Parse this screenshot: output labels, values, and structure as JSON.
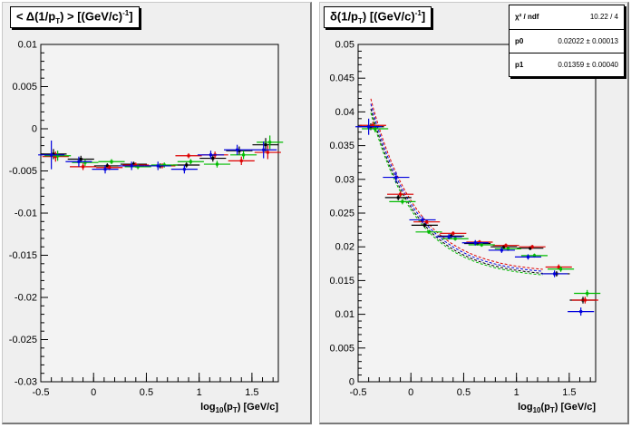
{
  "chart_data": [
    {
      "type": "scatter",
      "title": "< Δ(1/p_T) >  [(GeV/c)^-1]",
      "title_parts": {
        "pre": "< Δ(1/p",
        "sub": "T",
        "post": ") >  [(GeV/c)",
        "sup": "-1",
        "end": "]"
      },
      "xlabel": "log_10(p_T)  [GeV/c]",
      "xlabel_parts": {
        "pre": "log",
        "sub1": "10",
        "mid": "(p",
        "sub2": "T",
        "post": ")  [GeV/c]"
      },
      "xlim": [
        -0.5,
        1.75
      ],
      "ylim": [
        -0.03,
        0.01
      ],
      "x_ticks": [
        -0.5,
        0,
        0.5,
        1,
        1.5
      ],
      "x_tick_labels": [
        "-0.5",
        "0",
        "0.5",
        "1",
        "1.5"
      ],
      "y_ticks": [
        -0.03,
        -0.025,
        -0.02,
        -0.015,
        -0.01,
        -0.005,
        0,
        0.005,
        0.01
      ],
      "y_tick_labels": [
        "-0.03",
        "-0.025",
        "-0.02",
        "-0.015",
        "-0.01",
        "-0.005",
        "0",
        "0.005",
        "0.01"
      ],
      "grid": false,
      "series": [
        {
          "color": "#000000",
          "x": [
            -0.38,
            -0.12,
            0.13,
            0.38,
            0.63,
            0.88,
            1.13,
            1.38,
            1.63
          ],
          "y": [
            -0.003,
            -0.0036,
            -0.0044,
            -0.0042,
            -0.0044,
            -0.0043,
            -0.0035,
            -0.0026,
            -0.0019
          ],
          "yerr": [
            0.0006,
            0.0004,
            0.0003,
            0.0003,
            0.0003,
            0.0003,
            0.0004,
            0.0005,
            0.0008
          ]
        },
        {
          "color": "#dd0000",
          "x": [
            -0.36,
            -0.1,
            0.15,
            0.4,
            0.65,
            0.9,
            1.15,
            1.4,
            1.65
          ],
          "y": [
            -0.0033,
            -0.0045,
            -0.0046,
            -0.0043,
            -0.0044,
            -0.0032,
            -0.0031,
            -0.0038,
            -0.0028
          ],
          "yerr": [
            0.0006,
            0.0004,
            0.0003,
            0.0003,
            0.0003,
            0.0003,
            0.0004,
            0.0005,
            0.0008
          ]
        },
        {
          "color": "#00bb00",
          "x": [
            -0.34,
            -0.08,
            0.17,
            0.42,
            0.67,
            0.92,
            1.17,
            1.42,
            1.67
          ],
          "y": [
            -0.0032,
            -0.004,
            -0.0039,
            -0.0045,
            -0.0043,
            -0.0039,
            -0.0042,
            -0.0031,
            -0.0016
          ],
          "yerr": [
            0.0006,
            0.0004,
            0.0003,
            0.0003,
            0.0003,
            0.0003,
            0.0004,
            0.0005,
            0.0008
          ]
        },
        {
          "color": "#0000dd",
          "x": [
            -0.4,
            -0.14,
            0.11,
            0.36,
            0.61,
            0.86,
            1.11,
            1.36,
            1.61
          ],
          "y": [
            -0.0031,
            -0.0039,
            -0.0048,
            -0.0044,
            -0.0044,
            -0.0048,
            -0.0031,
            -0.0025,
            -0.0025
          ],
          "yerr": [
            0.0017,
            0.0006,
            0.0005,
            0.0005,
            0.0005,
            0.0005,
            0.0005,
            0.0006,
            0.001
          ]
        }
      ]
    },
    {
      "type": "scatter",
      "title": "δ(1/p_T)  [(GeV/c)^-1]",
      "title_parts": {
        "pre": "δ(1/p",
        "sub": "T",
        "post": ")  [(GeV/c)",
        "sup": "-1",
        "end": "]"
      },
      "xlabel": "log_10(p_T)  [GeV/c]",
      "xlabel_parts": {
        "pre": "log",
        "sub1": "10",
        "mid": "(p",
        "sub2": "T",
        "post": ")  [GeV/c]"
      },
      "xlim": [
        -0.5,
        1.75
      ],
      "ylim": [
        0,
        0.05
      ],
      "x_ticks": [
        -0.5,
        0,
        0.5,
        1,
        1.5
      ],
      "x_tick_labels": [
        "-0.5",
        "0",
        "0.5",
        "1",
        "1.5"
      ],
      "y_ticks": [
        0,
        0.005,
        0.01,
        0.015,
        0.02,
        0.025,
        0.03,
        0.035,
        0.04,
        0.045,
        0.05
      ],
      "y_tick_labels": [
        "0",
        "0.005",
        "0.01",
        "0.015",
        "0.02",
        "0.025",
        "0.03",
        "0.035",
        "0.04",
        "0.045",
        "0.05"
      ],
      "grid": false,
      "fit": {
        "p0": 0.02022,
        "p1": 0.01359,
        "x_from": -0.38,
        "x_to": 1.25
      },
      "stats": [
        {
          "name": "χ² / ndf",
          "value": "10.22 / 4"
        },
        {
          "name": "p0",
          "value": "0.02022 ± 0.00013"
        },
        {
          "name": "p1",
          "value": "0.01359 ± 0.00040"
        }
      ],
      "series": [
        {
          "color": "#000000",
          "x": [
            -0.38,
            -0.12,
            0.13,
            0.38,
            0.63,
            0.88,
            1.13,
            1.38,
            1.63
          ],
          "y": [
            0.0378,
            0.0273,
            0.0232,
            0.0216,
            0.0205,
            0.02,
            0.0198,
            0.016,
            0.0121
          ],
          "yerr": [
            0.0005,
            0.0004,
            0.0003,
            0.0003,
            0.0003,
            0.0003,
            0.0003,
            0.0004,
            0.0005
          ]
        },
        {
          "color": "#dd0000",
          "x": [
            -0.36,
            -0.1,
            0.15,
            0.4,
            0.65,
            0.9,
            1.15,
            1.4,
            1.65
          ],
          "y": [
            0.038,
            0.0278,
            0.0237,
            0.022,
            0.0207,
            0.0202,
            0.02,
            0.017,
            0.0121
          ],
          "yerr": [
            0.0005,
            0.0004,
            0.0003,
            0.0003,
            0.0003,
            0.0003,
            0.0003,
            0.0004,
            0.0005
          ]
        },
        {
          "color": "#00bb00",
          "x": [
            -0.34,
            -0.08,
            0.17,
            0.42,
            0.67,
            0.92,
            1.17,
            1.42,
            1.67
          ],
          "y": [
            0.0375,
            0.0267,
            0.0222,
            0.0212,
            0.0203,
            0.0197,
            0.0187,
            0.0167,
            0.0131
          ],
          "yerr": [
            0.0005,
            0.0004,
            0.0003,
            0.0003,
            0.0003,
            0.0003,
            0.0003,
            0.0004,
            0.0005
          ]
        },
        {
          "color": "#0000dd",
          "x": [
            -0.4,
            -0.14,
            0.11,
            0.36,
            0.61,
            0.86,
            1.11,
            1.36,
            1.61
          ],
          "y": [
            0.0378,
            0.0303,
            0.024,
            0.0215,
            0.0206,
            0.0195,
            0.0185,
            0.016,
            0.0104
          ],
          "yerr": [
            0.0012,
            0.0008,
            0.0005,
            0.0004,
            0.0004,
            0.0004,
            0.0004,
            0.0005,
            0.0006
          ]
        }
      ]
    }
  ]
}
